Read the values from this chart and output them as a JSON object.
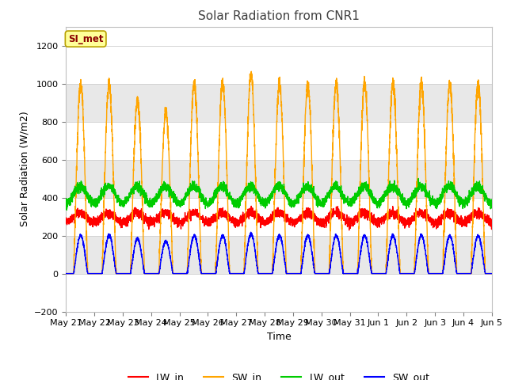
{
  "title": "Solar Radiation from CNR1",
  "xlabel": "Time",
  "ylabel": "Solar Radiation (W/m2)",
  "ylim": [
    -200,
    1300
  ],
  "yticks": [
    -200,
    0,
    200,
    400,
    600,
    800,
    1000,
    1200
  ],
  "x_labels": [
    "May 21",
    "May 22",
    "May 23",
    "May 24",
    "May 25",
    "May 26",
    "May 27",
    "May 28",
    "May 29",
    "May 30",
    "May 31",
    "Jun 1",
    "Jun 2",
    "Jun 3",
    "Jun 4",
    "Jun 5"
  ],
  "n_days": 15,
  "colors": {
    "LW_in": "#ff0000",
    "SW_in": "#ffa500",
    "LW_out": "#00cc00",
    "SW_out": "#0000ff"
  },
  "legend_label": "SI_met",
  "legend_label_color": "#8b0000",
  "legend_box_color": "#ffff99",
  "legend_box_edge": "#b8a000",
  "fig_bg_color": "#ffffff",
  "plot_bg_color": "#ffffff",
  "band_colors": [
    "#ffffff",
    "#e8e8e8"
  ],
  "grid_color": "#d0d0d0"
}
